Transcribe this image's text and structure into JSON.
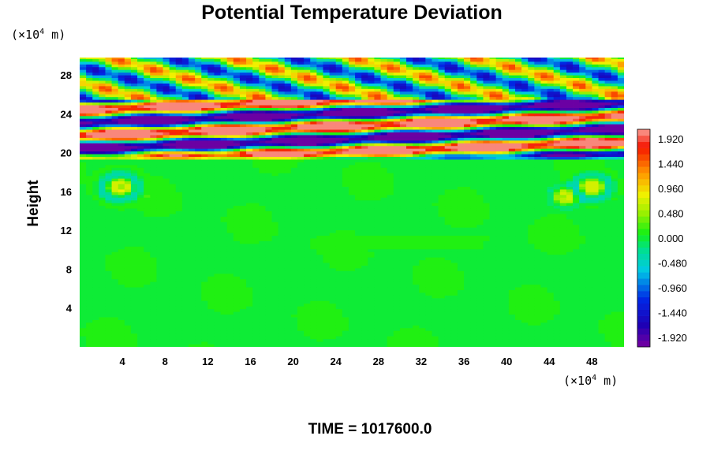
{
  "chart_data": {
    "type": "heatmap",
    "title": "Potential Temperature Deviation",
    "ylabel": "Height",
    "x_unit": {
      "prefix": "(×10",
      "exp": "4",
      "suffix": " m)"
    },
    "y_unit": {
      "prefix": "(×10",
      "exp": "4",
      "suffix": " m)"
    },
    "xlim": [
      0,
      51
    ],
    "ylim": [
      0,
      29.8
    ],
    "x_ticks": [
      4,
      8,
      12,
      16,
      20,
      24,
      28,
      32,
      36,
      40,
      44,
      48
    ],
    "y_ticks": [
      4,
      8,
      12,
      16,
      20,
      24,
      28
    ],
    "colorbar": {
      "min": -2.1,
      "max": 2.1,
      "labels": [
        "1.920",
        "1.440",
        "0.960",
        "0.480",
        "0.000",
        "-0.480",
        "-0.960",
        "-1.440",
        "-1.920"
      ],
      "label_values": [
        1.92,
        1.44,
        0.96,
        0.48,
        0.0,
        -0.48,
        -0.96,
        -1.44,
        -1.92
      ],
      "levels": 35
    },
    "field_summary": {
      "lower_region": {
        "height_range": [
          0,
          19.5
        ],
        "typical_value": 0.05
      },
      "band_region": {
        "height_range": [
          19.5,
          26
        ],
        "value_range": [
          -1.92,
          1.92
        ]
      },
      "upper_region": {
        "height_range": [
          26,
          29.8
        ],
        "value_range": [
          -1.44,
          1.44
        ]
      }
    },
    "footer": "TIME = 1017600.0"
  }
}
